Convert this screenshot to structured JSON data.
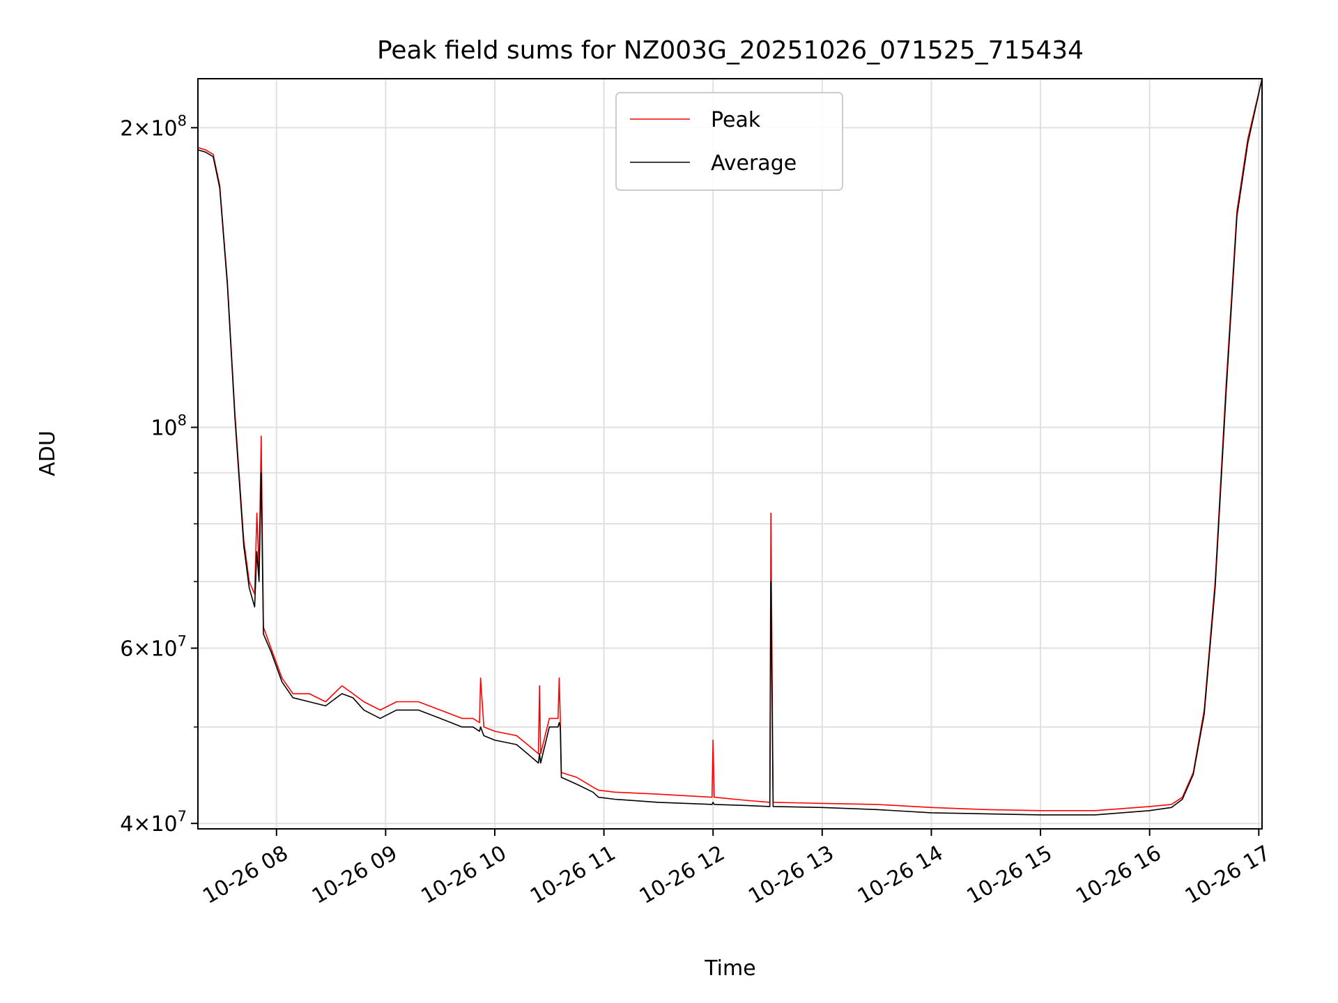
{
  "chart_data": {
    "type": "line",
    "title": "Peak field sums for NZ003G_20251026_071525_715434",
    "xlabel": "Time",
    "ylabel": "ADU",
    "yscale": "log",
    "xlim_hours": [
      7.28,
      17.03
    ],
    "ylim": [
      39500000,
      224000000
    ],
    "grid": true,
    "legend_position": "upper-center",
    "x_ticks": [
      {
        "hour": 8,
        "label": "10-26 08"
      },
      {
        "hour": 9,
        "label": "10-26 09"
      },
      {
        "hour": 10,
        "label": "10-26 10"
      },
      {
        "hour": 11,
        "label": "10-26 11"
      },
      {
        "hour": 12,
        "label": "10-26 12"
      },
      {
        "hour": 13,
        "label": "10-26 13"
      },
      {
        "hour": 14,
        "label": "10-26 14"
      },
      {
        "hour": 15,
        "label": "10-26 15"
      },
      {
        "hour": 16,
        "label": "10-26 16"
      },
      {
        "hour": 17,
        "label": "10-26 17"
      }
    ],
    "y_major_ticks": [
      {
        "value": 40000000,
        "mantissa": "4",
        "exponent": "7"
      },
      {
        "value": 60000000,
        "mantissa": "6",
        "exponent": "7"
      },
      {
        "value": 100000000,
        "mantissa": "",
        "exponent": "8"
      },
      {
        "value": 200000000,
        "mantissa": "2",
        "exponent": "8"
      }
    ],
    "y_minor_ticks": [
      50000000,
      70000000,
      80000000,
      90000000
    ],
    "series": [
      {
        "name": "Peak",
        "color": "#ff0000",
        "x_hours": [
          7.28,
          7.35,
          7.42,
          7.48,
          7.55,
          7.62,
          7.7,
          7.75,
          7.8,
          7.82,
          7.84,
          7.86,
          7.88,
          7.95,
          8.05,
          8.15,
          8.3,
          8.45,
          8.6,
          8.7,
          8.8,
          8.95,
          9.1,
          9.3,
          9.5,
          9.6,
          9.7,
          9.8,
          9.86,
          9.87,
          9.9,
          10.0,
          10.2,
          10.3,
          10.4,
          10.41,
          10.42,
          10.5,
          10.58,
          10.59,
          10.6,
          10.61,
          10.75,
          10.9,
          10.95,
          11.1,
          11.5,
          11.99,
          12.0,
          12.01,
          12.3,
          12.52,
          12.53,
          12.55,
          13.0,
          13.5,
          14.0,
          14.5,
          15.0,
          15.5,
          16.0,
          16.2,
          16.3,
          16.4,
          16.5,
          16.6,
          16.7,
          16.8,
          16.9,
          17.03
        ],
        "values": [
          191000000,
          190000000,
          188000000,
          175000000,
          140000000,
          103000000,
          77000000,
          70000000,
          68000000,
          82000000,
          72000000,
          98000000,
          63000000,
          60000000,
          56000000,
          54000000,
          54000000,
          53000000,
          55000000,
          54000000,
          53000000,
          52000000,
          53000000,
          53000000,
          52000000,
          51500000,
          51000000,
          51000000,
          50500000,
          56000000,
          50000000,
          49500000,
          49000000,
          48000000,
          47000000,
          55000000,
          47000000,
          51000000,
          51000000,
          56000000,
          51000000,
          45000000,
          44500000,
          43500000,
          43200000,
          43000000,
          42800000,
          42500000,
          48500000,
          42500000,
          42200000,
          42000000,
          82000000,
          42000000,
          41900000,
          41800000,
          41500000,
          41300000,
          41200000,
          41200000,
          41600000,
          41800000,
          42500000,
          45000000,
          52000000,
          70000000,
          110000000,
          165000000,
          195000000,
          224000000
        ]
      },
      {
        "name": "Average",
        "color": "#000000",
        "x_hours": [
          7.28,
          7.35,
          7.42,
          7.48,
          7.55,
          7.62,
          7.7,
          7.75,
          7.8,
          7.82,
          7.84,
          7.86,
          7.88,
          7.95,
          8.05,
          8.15,
          8.3,
          8.45,
          8.6,
          8.7,
          8.8,
          8.95,
          9.1,
          9.3,
          9.5,
          9.6,
          9.7,
          9.8,
          9.86,
          9.87,
          9.9,
          10.0,
          10.2,
          10.3,
          10.4,
          10.41,
          10.42,
          10.5,
          10.58,
          10.59,
          10.6,
          10.61,
          10.75,
          10.9,
          10.95,
          11.1,
          11.5,
          11.99,
          12.0,
          12.01,
          12.3,
          12.52,
          12.53,
          12.55,
          13.0,
          13.5,
          14.0,
          14.5,
          15.0,
          15.5,
          16.0,
          16.2,
          16.3,
          16.4,
          16.5,
          16.6,
          16.7,
          16.8,
          16.9,
          17.03
        ],
        "values": [
          190000000,
          189000000,
          187000000,
          174000000,
          139000000,
          102000000,
          76000000,
          69000000,
          66000000,
          75000000,
          70000000,
          90000000,
          62000000,
          59500000,
          55500000,
          53500000,
          53000000,
          52500000,
          54000000,
          53500000,
          52000000,
          51000000,
          52000000,
          52000000,
          51000000,
          50500000,
          50000000,
          50000000,
          49500000,
          50000000,
          49000000,
          48500000,
          48000000,
          47000000,
          46000000,
          47000000,
          46000000,
          50000000,
          50000000,
          50500000,
          50000000,
          44500000,
          43800000,
          43000000,
          42500000,
          42300000,
          42000000,
          41800000,
          42000000,
          41800000,
          41700000,
          41600000,
          70000000,
          41600000,
          41500000,
          41300000,
          41000000,
          40900000,
          40800000,
          40800000,
          41200000,
          41500000,
          42300000,
          44800000,
          51500000,
          69000000,
          108000000,
          163000000,
          193000000,
          224000000
        ]
      }
    ]
  }
}
